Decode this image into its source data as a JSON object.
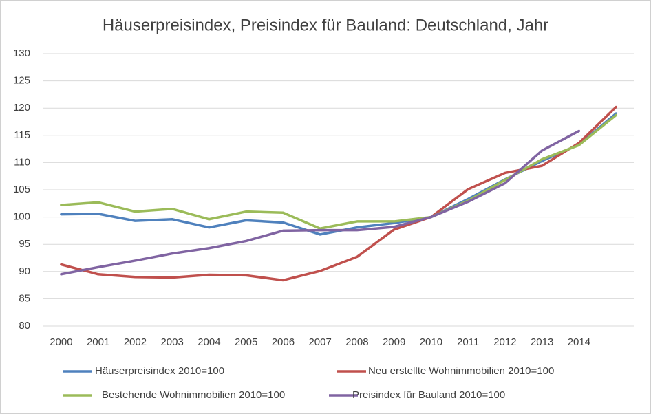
{
  "chart_data": {
    "type": "line",
    "title": "Häuserpreisindex, Preisindex für Bauland: Deutschland, Jahr",
    "categories": [
      "2000",
      "2001",
      "2002",
      "2003",
      "2004",
      "2005",
      "2006",
      "2007",
      "2008",
      "2009",
      "2010",
      "2011",
      "2012",
      "2013",
      "2014",
      null
    ],
    "series": [
      {
        "name": "Häuserpreisindex 2010=100",
        "color": "#4f81bd",
        "values": [
          100.5,
          100.6,
          99.3,
          99.6,
          98.1,
          99.4,
          99.0,
          96.8,
          98.1,
          98.9,
          100,
          103.3,
          106.9,
          110.3,
          113.3,
          119.0
        ]
      },
      {
        "name": "Neu erstellte Wohnimmobilien 2010=100",
        "color": "#c0504d",
        "values": [
          91.3,
          89.5,
          89.0,
          88.9,
          89.4,
          89.3,
          88.4,
          90.1,
          92.7,
          97.7,
          100,
          105.1,
          108.1,
          109.4,
          113.6,
          120.2
        ]
      },
      {
        "name": "Bestehende Wohnimmobilien 2010=100",
        "color": "#9bbb59",
        "values": [
          102.2,
          102.7,
          101.0,
          101.5,
          99.6,
          101.0,
          100.8,
          97.9,
          99.2,
          99.2,
          100,
          103.0,
          106.8,
          110.6,
          113.2,
          118.7
        ]
      },
      {
        "name": "Preisindex für Bauland 2010=100",
        "color": "#8064a2",
        "values": [
          89.5,
          90.8,
          92.0,
          93.3,
          94.3,
          95.6,
          97.5,
          97.6,
          97.6,
          98.2,
          100,
          102.8,
          106.2,
          112.2,
          115.8,
          null
        ]
      }
    ],
    "ylim": [
      80,
      130
    ],
    "yticks": [
      80,
      85,
      90,
      95,
      100,
      105,
      110,
      115,
      120,
      125,
      130
    ],
    "grid": true,
    "legend": "bottom"
  }
}
